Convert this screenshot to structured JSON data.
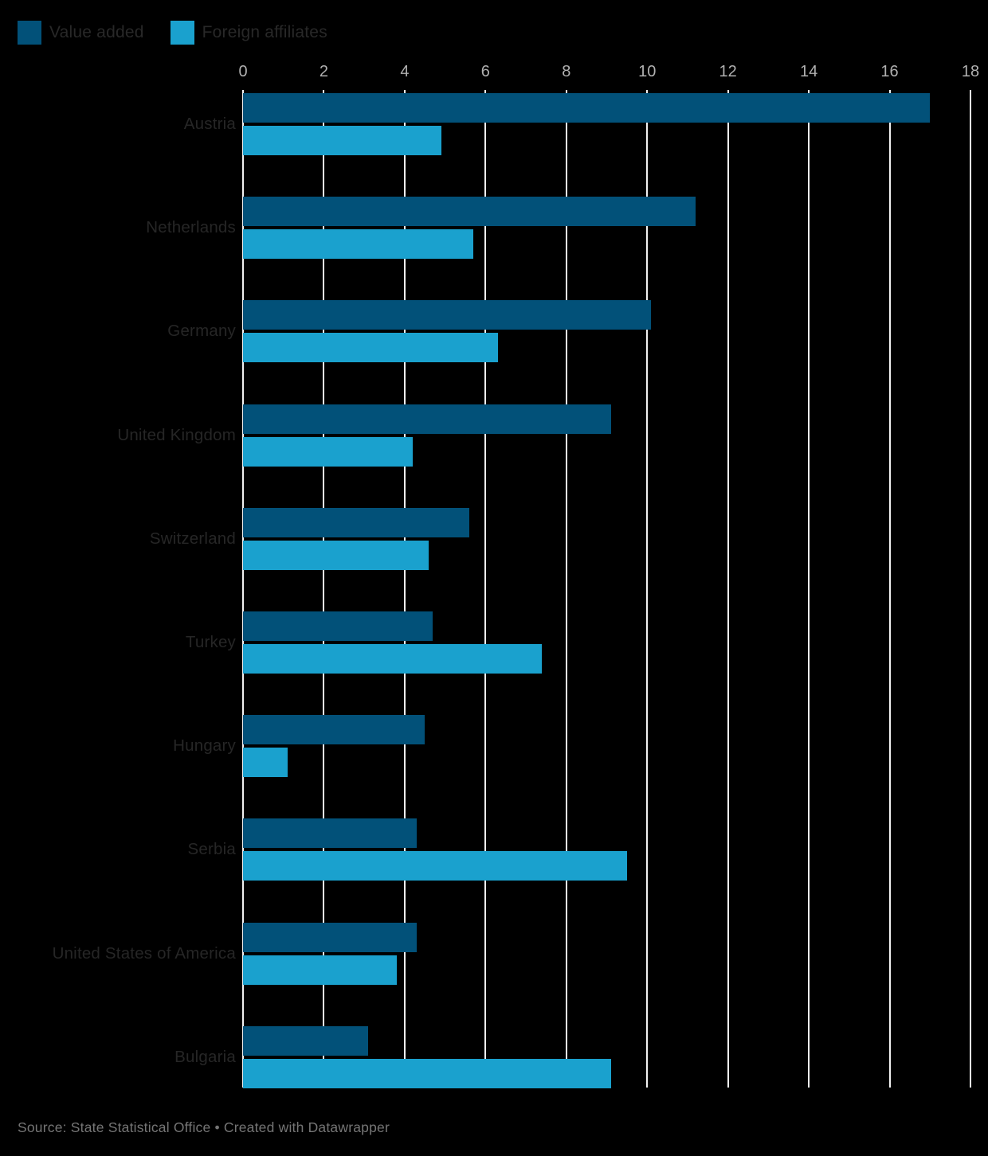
{
  "legend": {
    "items": [
      {
        "label": "Value added",
        "color": "#025179"
      },
      {
        "label": "Foreign affiliates",
        "color": "#1aa1ce"
      }
    ]
  },
  "axis": {
    "ticks": [
      0,
      2,
      4,
      6,
      8,
      10,
      12,
      14,
      16,
      18
    ],
    "min": 0,
    "max": 18,
    "tick_color": "#b0b0b0",
    "gridline_color": "#f2f2f2"
  },
  "chart_data": {
    "type": "bar",
    "orientation": "horizontal",
    "title": "",
    "xlabel": "",
    "ylabel": "",
    "xlim": [
      0,
      18
    ],
    "x_ticks": [
      0,
      2,
      4,
      6,
      8,
      10,
      12,
      14,
      16,
      18
    ],
    "grid": "vertical",
    "legend_position": "top-left",
    "categories": [
      "Austria",
      "Netherlands",
      "Germany",
      "United Kingdom",
      "Switzerland",
      "Turkey",
      "Hungary",
      "Serbia",
      "United States of America",
      "Bulgaria"
    ],
    "series": [
      {
        "name": "Value added",
        "color": "#025179",
        "values": [
          17.0,
          11.2,
          10.1,
          9.1,
          5.6,
          4.7,
          4.5,
          4.3,
          4.3,
          3.1
        ]
      },
      {
        "name": "Foreign affiliates",
        "color": "#1aa1ce",
        "values": [
          4.9,
          5.7,
          6.3,
          4.2,
          4.6,
          7.4,
          1.1,
          9.5,
          3.8,
          9.1
        ]
      }
    ]
  },
  "footer": {
    "text": "Source: State Statistical Office • Created with Datawrapper"
  },
  "colors": {
    "background": "#000000",
    "label_text": "#262626",
    "footer_text": "#757575"
  }
}
